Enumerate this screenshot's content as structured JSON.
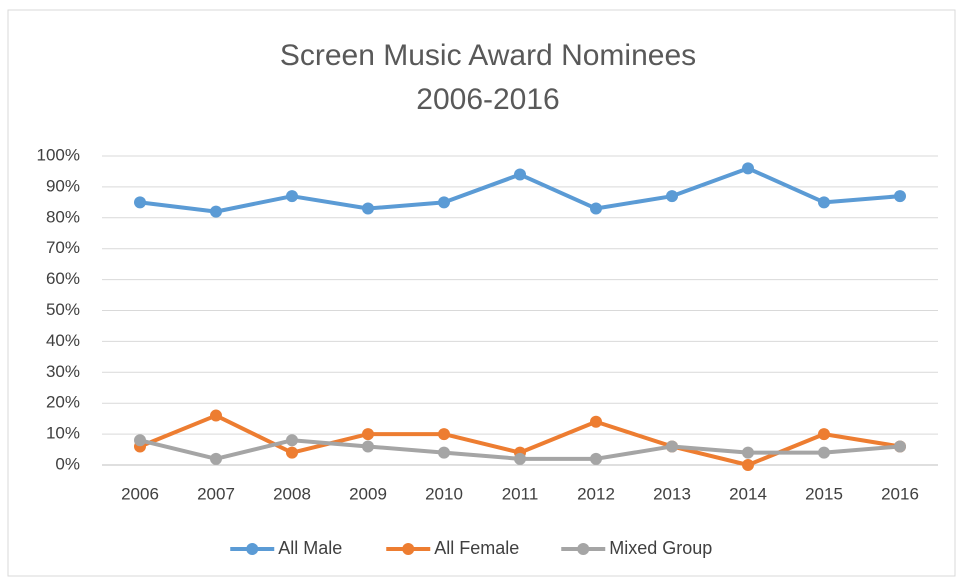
{
  "chart_data": {
    "type": "line",
    "title": "Screen Music Award Nominees",
    "subtitle": "2006-2016",
    "categories": [
      "2006",
      "2007",
      "2008",
      "2009",
      "2010",
      "2011",
      "2012",
      "2013",
      "2014",
      "2015",
      "2016"
    ],
    "series": [
      {
        "name": "All Male",
        "color": "#5b9bd5",
        "values": [
          85,
          82,
          87,
          83,
          85,
          94,
          83,
          87,
          96,
          85,
          87
        ]
      },
      {
        "name": "All Female",
        "color": "#ed7d31",
        "values": [
          6,
          16,
          4,
          10,
          10,
          4,
          14,
          6,
          0,
          10,
          6
        ]
      },
      {
        "name": "Mixed Group",
        "color": "#a5a5a5",
        "values": [
          8,
          2,
          8,
          6,
          4,
          2,
          2,
          6,
          4,
          4,
          6
        ]
      }
    ],
    "ylim": [
      0,
      100
    ],
    "yticks": [
      {
        "value": 0,
        "label": "0%"
      },
      {
        "value": 10,
        "label": "10%"
      },
      {
        "value": 20,
        "label": "20%"
      },
      {
        "value": 30,
        "label": "30%"
      },
      {
        "value": 40,
        "label": "40%"
      },
      {
        "value": 50,
        "label": "50%"
      },
      {
        "value": 60,
        "label": "60%"
      },
      {
        "value": 70,
        "label": "70%"
      },
      {
        "value": 80,
        "label": "80%"
      },
      {
        "value": 90,
        "label": "90%"
      },
      {
        "value": 100,
        "label": "100%"
      }
    ],
    "grid": true,
    "legend": "bottom"
  }
}
